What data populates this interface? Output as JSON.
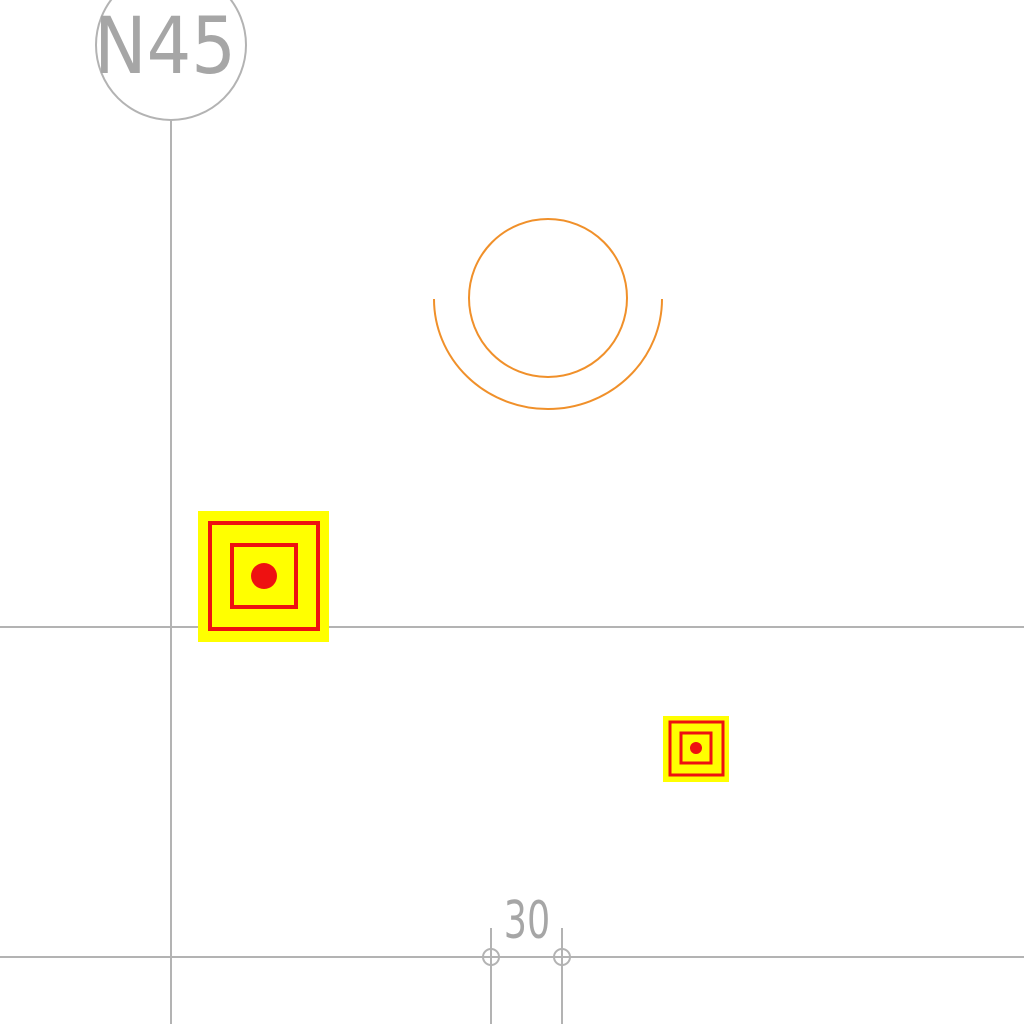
{
  "grid_label": "N45",
  "dimension_label": "30",
  "colors": {
    "background": "#ffffff",
    "grid_line": "#b3b3b3",
    "label_text": "#a6a6a6",
    "arc_symbol": "#f0902a",
    "marker_fill": "#ffff00",
    "marker_stroke": "#ee1111"
  },
  "symbols": {
    "grid_bubble": "circle-grid-bubble",
    "fixture_symbol": "orange-circle-arc-symbol",
    "markers": [
      "large-square-target-marker",
      "small-square-target-marker"
    ]
  }
}
